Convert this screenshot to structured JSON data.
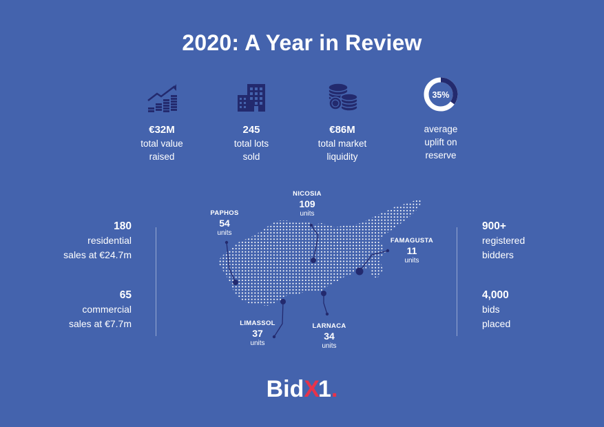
{
  "title": "2020: A Year in Review",
  "colors": {
    "background": "#4463ad",
    "icon_navy": "#232a6e",
    "text": "#ffffff",
    "brand_red": "#e8334a"
  },
  "stats": [
    {
      "icon": "growth-chart-icon",
      "value": "€32M",
      "label_1": "total value",
      "label_2": "raised"
    },
    {
      "icon": "building-icon",
      "value": "245",
      "label_1": "total lots",
      "label_2": "sold"
    },
    {
      "icon": "coins-stack-icon",
      "value": "€86M",
      "label_1": "total market",
      "label_2": "liquidity"
    },
    {
      "icon": "progress-ring-icon",
      "ring_value": "35%",
      "ring_fraction": 0.35,
      "label_1": "average",
      "label_2": "uplift on",
      "label_3": "reserve"
    }
  ],
  "left_stats": [
    {
      "number": "180",
      "line_1": "residential",
      "line_2": "sales at €24.7m"
    },
    {
      "number": "65",
      "line_1": "commercial",
      "line_2": "sales at €7.7m"
    }
  ],
  "right_stats": [
    {
      "number": "900+",
      "line_1": "registered",
      "line_2": "bidders"
    },
    {
      "number": "4,000",
      "line_1": "bids",
      "line_2": "placed"
    }
  ],
  "cities": [
    {
      "name": "PAPHOS",
      "count": "54",
      "unit": "units"
    },
    {
      "name": "NICOSIA",
      "count": "109",
      "unit": "units"
    },
    {
      "name": "FAMAGUSTA",
      "count": "11",
      "unit": "units"
    },
    {
      "name": "LIMASSOL",
      "count": "37",
      "unit": "units"
    },
    {
      "name": "LARNACA",
      "count": "34",
      "unit": "units"
    }
  ],
  "logo": {
    "text_main": "Bid",
    "text_x": "X",
    "text_one": "1",
    "text_dot": "."
  }
}
